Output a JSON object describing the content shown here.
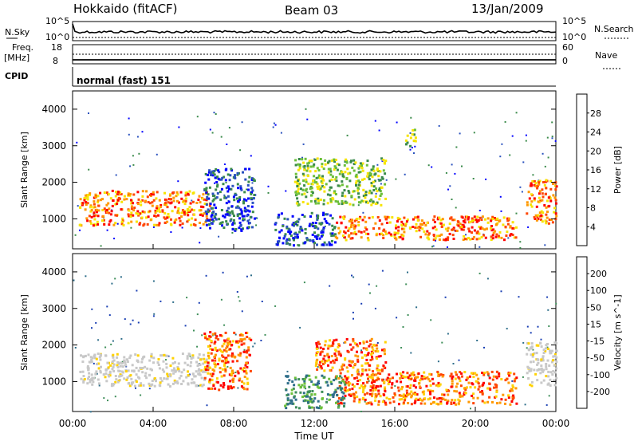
{
  "header": {
    "station": "Hokkaido (fitACF)",
    "beam": "Beam 03",
    "date": "13/Jan/2009"
  },
  "time_axis": {
    "label": "Time UT",
    "ticks": [
      "00:00",
      "04:00",
      "08:00",
      "12:00",
      "16:00",
      "20:00",
      "00:00"
    ],
    "range_hours": [
      0,
      24
    ]
  },
  "summary": {
    "nsky_label": "N.Sky",
    "nsky_ticks": [
      "10^5",
      "10^0"
    ],
    "nsearch_label": "N.Search",
    "nsearch_ticks": [
      "10^5",
      "10^0"
    ],
    "freq_label": "Freq.",
    "freq_unit": "[MHz]",
    "freq_ticks": [
      "18",
      "8"
    ],
    "nave_label": "Nave",
    "nave_ticks": [
      "60",
      "0"
    ],
    "cpid_label": "CPID",
    "cpid_value": "normal (fast) 151"
  },
  "chart_data": [
    {
      "type": "heatmap",
      "ylabel": "Slant Range [km]",
      "ylim": [
        180,
        4500
      ],
      "yticks": [
        1000,
        2000,
        3000,
        4000
      ],
      "xlim": [
        0,
        24
      ],
      "colorbar": {
        "label": "Power [dB]",
        "ticks": [
          "28",
          "24",
          "20",
          "16",
          "12",
          "8",
          "4"
        ],
        "colors": [
          "#0000ff",
          "#2a52be",
          "#3a8a4a",
          "#6cbf3a",
          "#f7e400",
          "#ff9800",
          "#ff4500",
          "#ff0000"
        ]
      },
      "regions": [
        {
          "t0": 0.3,
          "t1": 6.8,
          "r0": 850,
          "r1": 1800,
          "level": "high"
        },
        {
          "t0": 13.0,
          "t1": 22.0,
          "r0": 450,
          "r1": 1100,
          "level": "high"
        },
        {
          "t0": 22.5,
          "t1": 24.0,
          "r0": 900,
          "r1": 2100,
          "level": "high"
        },
        {
          "t0": 6.5,
          "t1": 9.0,
          "r0": 700,
          "r1": 2400,
          "level": "low"
        },
        {
          "t0": 10.0,
          "t1": 13.0,
          "r0": 300,
          "r1": 1200,
          "level": "low"
        },
        {
          "t0": 11.0,
          "t1": 15.5,
          "r0": 1400,
          "r1": 2700,
          "level": "mid"
        },
        {
          "t0": 16.5,
          "t1": 17.0,
          "r0": 3000,
          "r1": 3500,
          "level": "mid"
        }
      ]
    },
    {
      "type": "heatmap",
      "ylabel": "Slant Range [km]",
      "ylim": [
        180,
        4500
      ],
      "yticks": [
        1000,
        2000,
        3000,
        4000
      ],
      "xlim": [
        0,
        24
      ],
      "colorbar": {
        "label": "Velocity [m s^-1]",
        "ticks": [
          "200",
          "100",
          "50",
          "15",
          "-15",
          "-50",
          "-100",
          "-200"
        ],
        "colors": [
          "#1a3fb3",
          "#2e6e8a",
          "#3f8f5a",
          "#6cc03a",
          "#c8c8c8",
          "#ffd200",
          "#ff9800",
          "#ff4500",
          "#ff0000"
        ]
      },
      "regions": [
        {
          "t0": 0.3,
          "t1": 6.8,
          "r0": 900,
          "r1": 1800,
          "level": "zero"
        },
        {
          "t0": 13.0,
          "t1": 22.0,
          "r0": 400,
          "r1": 1300,
          "level": "neg"
        },
        {
          "t0": 22.5,
          "t1": 24.0,
          "r0": 900,
          "r1": 2100,
          "level": "zero"
        },
        {
          "t0": 10.5,
          "t1": 13.5,
          "r0": 300,
          "r1": 1200,
          "level": "pos"
        },
        {
          "t0": 12.0,
          "t1": 15.5,
          "r0": 1300,
          "r1": 2200,
          "level": "neg"
        },
        {
          "t0": 6.5,
          "t1": 8.8,
          "r0": 800,
          "r1": 2400,
          "level": "neg"
        }
      ]
    }
  ]
}
